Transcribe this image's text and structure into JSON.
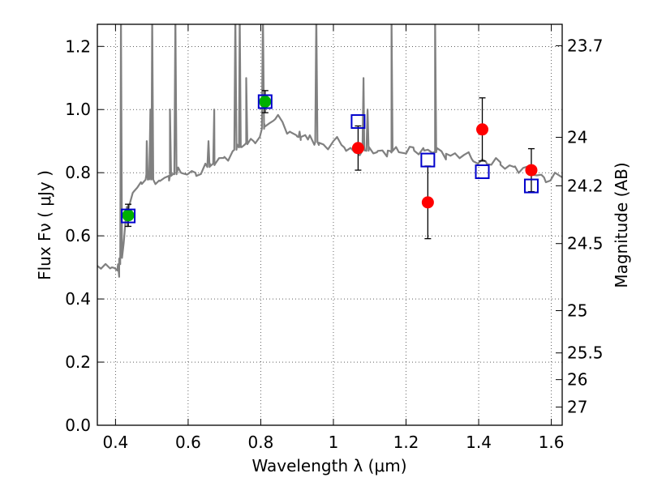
{
  "chart_data": {
    "type": "scatter",
    "xlabel": "Wavelength  λ (μm)",
    "ylabel": "Flux  Fν  ( μJy )",
    "ylabel_right": "Magnitude (AB)",
    "xlim": [
      0.35,
      1.63
    ],
    "ylim": [
      0.0,
      1.27
    ],
    "x_ticks": [
      0.4,
      0.6,
      0.8,
      1.0,
      1.2,
      1.4,
      1.6
    ],
    "x_tick_labels": [
      "0.4",
      "0.6",
      "0.8",
      "1",
      "1.2",
      "1.4",
      "1.6"
    ],
    "y_ticks": [
      0.0,
      0.2,
      0.4,
      0.6,
      0.8,
      1.0,
      1.2
    ],
    "y_tick_labels": [
      "0.0",
      "0.2",
      "0.4",
      "0.6",
      "0.8",
      "1.0",
      "1.2"
    ],
    "right_ticks": [
      23.7,
      24,
      24.2,
      24.5,
      25,
      25.5,
      26,
      27
    ],
    "right_tick_labels": [
      "23.7",
      "24",
      "24.2",
      "24.5",
      "25",
      "25.5",
      "26",
      "27"
    ],
    "grid": true,
    "series": [
      {
        "kind": "template-spectrum",
        "color": "#808080",
        "continuum": [
          [
            0.35,
            0.505
          ],
          [
            0.39,
            0.5
          ],
          [
            0.405,
            0.49
          ],
          [
            0.42,
            0.55
          ],
          [
            0.43,
            0.68
          ],
          [
            0.45,
            0.74
          ],
          [
            0.47,
            0.77
          ],
          [
            0.49,
            0.78
          ],
          [
            0.52,
            0.775
          ],
          [
            0.55,
            0.79
          ],
          [
            0.58,
            0.8
          ],
          [
            0.62,
            0.8
          ],
          [
            0.66,
            0.82
          ],
          [
            0.7,
            0.85
          ],
          [
            0.74,
            0.88
          ],
          [
            0.78,
            0.9
          ],
          [
            0.81,
            0.945
          ],
          [
            0.84,
            0.97
          ],
          [
            0.86,
            0.96
          ],
          [
            0.88,
            0.93
          ],
          [
            0.9,
            0.915
          ],
          [
            0.93,
            0.905
          ],
          [
            0.96,
            0.895
          ],
          [
            0.98,
            0.88
          ],
          [
            1.0,
            0.9
          ],
          [
            1.03,
            0.88
          ],
          [
            1.06,
            0.87
          ],
          [
            1.09,
            0.87
          ],
          [
            1.12,
            0.865
          ],
          [
            1.15,
            0.87
          ],
          [
            1.18,
            0.865
          ],
          [
            1.2,
            0.86
          ],
          [
            1.22,
            0.88
          ],
          [
            1.25,
            0.87
          ],
          [
            1.28,
            0.865
          ],
          [
            1.31,
            0.86
          ],
          [
            1.34,
            0.855
          ],
          [
            1.38,
            0.845
          ],
          [
            1.42,
            0.835
          ],
          [
            1.46,
            0.825
          ],
          [
            1.5,
            0.82
          ],
          [
            1.54,
            0.8
          ],
          [
            1.58,
            0.785
          ],
          [
            1.63,
            0.785
          ]
        ],
        "emission_lines": [
          [
            0.41,
            0.47
          ],
          [
            0.415,
            1.3
          ],
          [
            0.434,
            0.63
          ],
          [
            0.486,
            0.9
          ],
          [
            0.496,
            1.0
          ],
          [
            0.501,
            1.3
          ],
          [
            0.55,
            1.0
          ],
          [
            0.565,
            1.3
          ],
          [
            0.656,
            0.9
          ],
          [
            0.672,
            1.0
          ],
          [
            0.73,
            1.3
          ],
          [
            0.742,
            1.3
          ],
          [
            0.76,
            1.1
          ],
          [
            0.806,
            1.3
          ],
          [
            0.907,
            0.93
          ],
          [
            0.953,
            1.3
          ],
          [
            1.083,
            1.1
          ],
          [
            1.094,
            1.0
          ],
          [
            1.16,
            1.3
          ],
          [
            1.28,
            1.3
          ]
        ]
      },
      {
        "name": "",
        "kind": "green-points",
        "color": "#00b000",
        "points": [
          {
            "x": 0.435,
            "y": 0.665,
            "err_low": 0.035,
            "err_high": 0.035
          },
          {
            "x": 0.812,
            "y": 1.025,
            "err_low": 0.035,
            "err_high": 0.035
          }
        ]
      },
      {
        "name": "",
        "kind": "red-points",
        "color": "#ff0000",
        "points": [
          {
            "x": 1.068,
            "y": 0.878,
            "err_low": 0.07,
            "err_high": 0.07
          },
          {
            "x": 1.26,
            "y": 0.706,
            "err_low": 0.115,
            "err_high": 0.115
          },
          {
            "x": 1.41,
            "y": 0.937,
            "err_low": 0.1,
            "err_high": 0.1
          },
          {
            "x": 1.545,
            "y": 0.808,
            "err_low": 0.068,
            "err_high": 0.068
          }
        ]
      },
      {
        "name": "",
        "kind": "model-squares",
        "color": "#0000cc",
        "points": [
          {
            "x": 0.435,
            "y": 0.663
          },
          {
            "x": 0.812,
            "y": 1.025
          },
          {
            "x": 1.068,
            "y": 0.962
          },
          {
            "x": 1.26,
            "y": 0.84
          },
          {
            "x": 1.41,
            "y": 0.803
          },
          {
            "x": 1.545,
            "y": 0.758
          }
        ]
      }
    ]
  }
}
